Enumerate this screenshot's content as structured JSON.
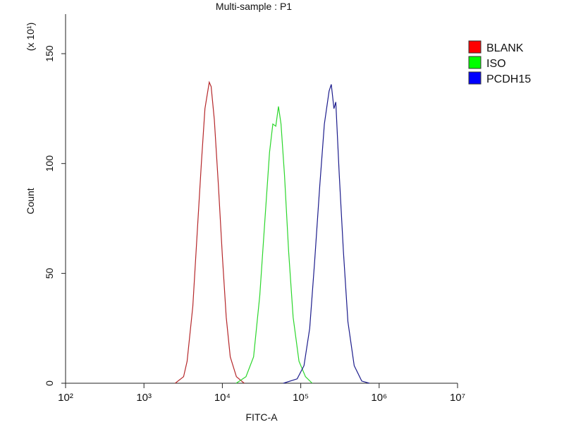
{
  "chart_data": {
    "type": "histogram-overlay",
    "title": "Multi-sample : P1",
    "x_label": "FITC-A",
    "y_label": "Count",
    "y_multiplier": "(x 10¹)",
    "log_x": true,
    "xlim": [
      100,
      10000000
    ],
    "xticks": [
      {
        "value": 100,
        "label": "10²"
      },
      {
        "value": 1000,
        "label": "10³"
      },
      {
        "value": 10000,
        "label": "10⁴"
      },
      {
        "value": 100000,
        "label": "10⁵"
      },
      {
        "value": 1000000,
        "label": "10⁶"
      },
      {
        "value": 10000000,
        "label": "10⁷"
      }
    ],
    "ylim": [
      0,
      168
    ],
    "yticks": [
      0,
      50,
      100,
      150
    ],
    "legend": "upper right",
    "series": [
      {
        "name": "BLANK",
        "color": "#ff0000",
        "line_color": "#b5272a",
        "x": [
          2500,
          3200,
          3550,
          4200,
          4800,
          5400,
          6000,
          6800,
          7200,
          7900,
          8900,
          10000,
          11200,
          12600,
          15100,
          19000
        ],
        "values": [
          0,
          3,
          10,
          35,
          70,
          100,
          125,
          137,
          135,
          120,
          90,
          58,
          30,
          12,
          3,
          0
        ]
      },
      {
        "name": "ISO",
        "color": "#00ff00",
        "line_color": "#2bd62b",
        "x": [
          15000,
          20000,
          25000,
          30000,
          35000,
          40000,
          44000,
          48000,
          52000,
          56000,
          62000,
          70000,
          80000,
          95000,
          115000,
          140000
        ],
        "values": [
          0,
          3,
          12,
          40,
          75,
          105,
          118,
          117,
          126,
          118,
          95,
          60,
          30,
          10,
          3,
          0
        ]
      },
      {
        "name": "PCDH15",
        "color": "#0000ff",
        "line_color": "#1c1c8c",
        "x": [
          60000,
          90000,
          110000,
          130000,
          150000,
          175000,
          200000,
          230000,
          245000,
          265000,
          280000,
          310000,
          350000,
          400000,
          480000,
          600000,
          750000
        ],
        "values": [
          0,
          2,
          8,
          25,
          55,
          90,
          118,
          133,
          136,
          125,
          128,
          95,
          60,
          28,
          8,
          1,
          0
        ]
      }
    ]
  }
}
